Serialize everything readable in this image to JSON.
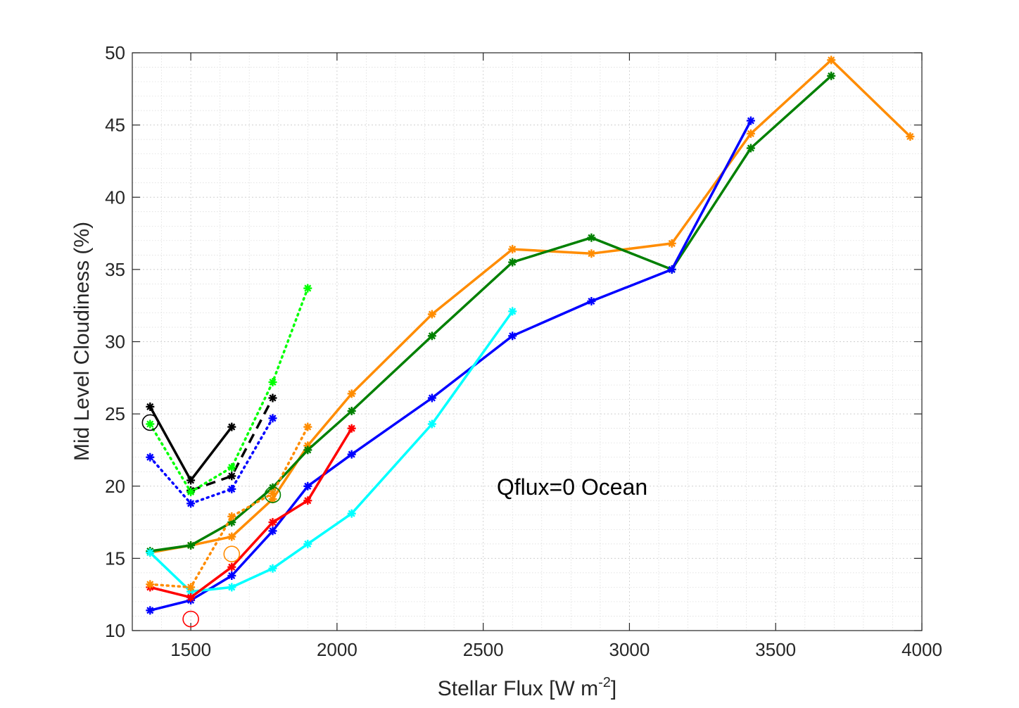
{
  "chart_data": {
    "type": "line",
    "title": "",
    "xlabel": "Stellar Flux [W m",
    "xlabel_superscript": "-2",
    "xlabel_suffix": "]",
    "ylabel": "Mid Level Cloudiness (%)",
    "xlim": [
      1300,
      4000
    ],
    "ylim": [
      10,
      50
    ],
    "xticks": [
      1500,
      2000,
      2500,
      3000,
      3500,
      4000
    ],
    "yticks": [
      10,
      15,
      20,
      25,
      30,
      35,
      40,
      45,
      50
    ],
    "xtick_labels": [
      "1500",
      "2000",
      "2500",
      "3000",
      "3500",
      "4000"
    ],
    "ytick_labels": [
      "10",
      "15",
      "20",
      "25",
      "30",
      "35",
      "40",
      "45",
      "50"
    ],
    "grid": true,
    "minor_grid": true,
    "annotation": "Qflux=0 Ocean",
    "series": [
      {
        "name": "orange-solid",
        "color": "#FF8C00",
        "style": "solid",
        "x": [
          1361,
          1500,
          1640,
          1780,
          1900,
          2050,
          2325,
          2600,
          2870,
          3145,
          3415,
          3690,
          3960
        ],
        "y": [
          15.4,
          15.9,
          16.5,
          19.1,
          22.8,
          26.4,
          31.9,
          36.4,
          36.1,
          36.8,
          44.4,
          49.5,
          44.2
        ]
      },
      {
        "name": "green-solid",
        "color": "#008000",
        "style": "solid",
        "x": [
          1361,
          1500,
          1640,
          1780,
          1900,
          2050,
          2325,
          2600,
          2870,
          3145,
          3415,
          3690
        ],
        "y": [
          15.5,
          15.9,
          17.5,
          19.9,
          22.5,
          25.2,
          30.4,
          35.5,
          37.2,
          35.0,
          43.4,
          48.4
        ]
      },
      {
        "name": "blue-solid",
        "color": "#0000FF",
        "style": "solid",
        "x": [
          1361,
          1500,
          1640,
          1780,
          1900,
          2050,
          2325,
          2600,
          2870,
          3145,
          3415
        ],
        "y": [
          11.4,
          12.1,
          13.8,
          16.9,
          20.0,
          22.2,
          26.1,
          30.4,
          32.8,
          35.0,
          45.3
        ]
      },
      {
        "name": "cyan-solid",
        "color": "#00FFFF",
        "style": "solid",
        "x": [
          1361,
          1500,
          1640,
          1780,
          1900,
          2050,
          2325,
          2600
        ],
        "y": [
          15.4,
          12.7,
          13.0,
          14.3,
          16.0,
          18.1,
          24.3,
          32.1
        ]
      },
      {
        "name": "red-solid",
        "color": "#FF0000",
        "style": "solid",
        "x": [
          1361,
          1500,
          1640,
          1780,
          1900,
          2050
        ],
        "y": [
          13.0,
          12.3,
          14.4,
          17.5,
          19.0,
          24.0
        ]
      },
      {
        "name": "black-solid",
        "color": "#000000",
        "style": "solid",
        "x": [
          1361,
          1500,
          1640
        ],
        "y": [
          25.5,
          20.4,
          24.1
        ]
      },
      {
        "name": "black-dashed",
        "color": "#000000",
        "style": "dashed",
        "x": [
          1500,
          1640,
          1780
        ],
        "y": [
          19.7,
          20.7,
          26.1
        ]
      },
      {
        "name": "green-dotted",
        "color": "#00FF00",
        "style": "dotted",
        "x": [
          1361,
          1500,
          1640,
          1780,
          1900
        ],
        "y": [
          24.3,
          19.6,
          21.3,
          27.2,
          33.7
        ]
      },
      {
        "name": "blue-dotted",
        "color": "#0000FF",
        "style": "dotted",
        "x": [
          1361,
          1500,
          1640,
          1780
        ],
        "y": [
          22.0,
          18.8,
          19.8,
          24.7
        ]
      },
      {
        "name": "orange-dotted",
        "color": "#FF8C00",
        "style": "dotted",
        "x": [
          1361,
          1500,
          1640,
          1780,
          1900
        ],
        "y": [
          13.2,
          13.0,
          17.9,
          19.5,
          24.1
        ]
      }
    ],
    "circles": [
      {
        "name": "black-circle",
        "color": "#000000",
        "x": 1361,
        "y": 24.4
      },
      {
        "name": "green-circle",
        "color": "#008000",
        "x": 1780,
        "y": 19.4
      },
      {
        "name": "orange-circle",
        "color": "#FF8C00",
        "x": 1640,
        "y": 15.3
      },
      {
        "name": "red-circle",
        "color": "#FF0000",
        "x": 1500,
        "y": 10.8
      }
    ]
  }
}
